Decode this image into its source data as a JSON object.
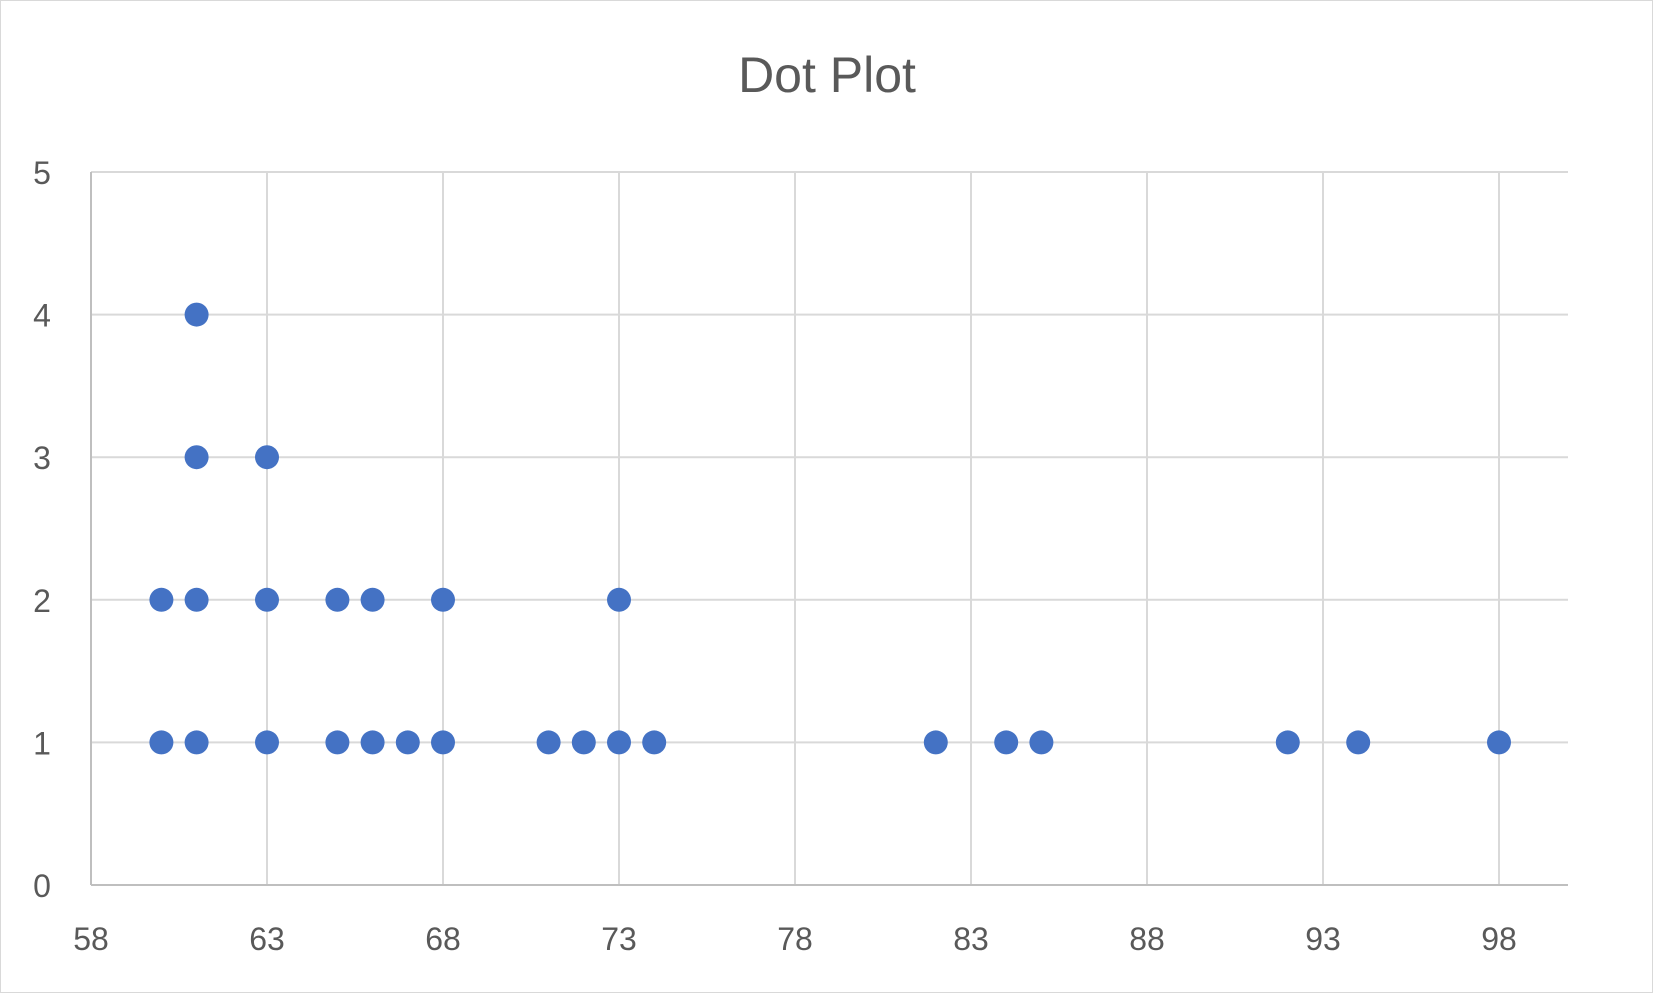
{
  "chart_data": {
    "type": "scatter",
    "title": "Dot Plot",
    "xlabel": "",
    "ylabel": "",
    "xlim": [
      58,
      100
    ],
    "ylim": [
      0,
      5
    ],
    "x_ticks": [
      58,
      63,
      68,
      73,
      78,
      83,
      88,
      93,
      98
    ],
    "y_ticks": [
      0,
      1,
      2,
      3,
      4,
      5
    ],
    "grid": true,
    "legend": "none",
    "series": [
      {
        "name": "Dot Plot",
        "color": "#4472c4",
        "points": [
          {
            "x": 60,
            "y": 1
          },
          {
            "x": 60,
            "y": 2
          },
          {
            "x": 61,
            "y": 1
          },
          {
            "x": 61,
            "y": 2
          },
          {
            "x": 61,
            "y": 3
          },
          {
            "x": 61,
            "y": 4
          },
          {
            "x": 63,
            "y": 1
          },
          {
            "x": 63,
            "y": 2
          },
          {
            "x": 63,
            "y": 3
          },
          {
            "x": 65,
            "y": 1
          },
          {
            "x": 65,
            "y": 2
          },
          {
            "x": 66,
            "y": 1
          },
          {
            "x": 66,
            "y": 2
          },
          {
            "x": 67,
            "y": 1
          },
          {
            "x": 68,
            "y": 1
          },
          {
            "x": 68,
            "y": 2
          },
          {
            "x": 71,
            "y": 1
          },
          {
            "x": 72,
            "y": 1
          },
          {
            "x": 73,
            "y": 1
          },
          {
            "x": 73,
            "y": 2
          },
          {
            "x": 74,
            "y": 1
          },
          {
            "x": 82,
            "y": 1
          },
          {
            "x": 84,
            "y": 1
          },
          {
            "x": 85,
            "y": 1
          },
          {
            "x": 92,
            "y": 1
          },
          {
            "x": 94,
            "y": 1
          },
          {
            "x": 98,
            "y": 1
          }
        ]
      }
    ]
  },
  "colors": {
    "grid": "#d9d9d9",
    "axis": "#bfbfbf",
    "text": "#595959",
    "marker": "#4472c4"
  }
}
